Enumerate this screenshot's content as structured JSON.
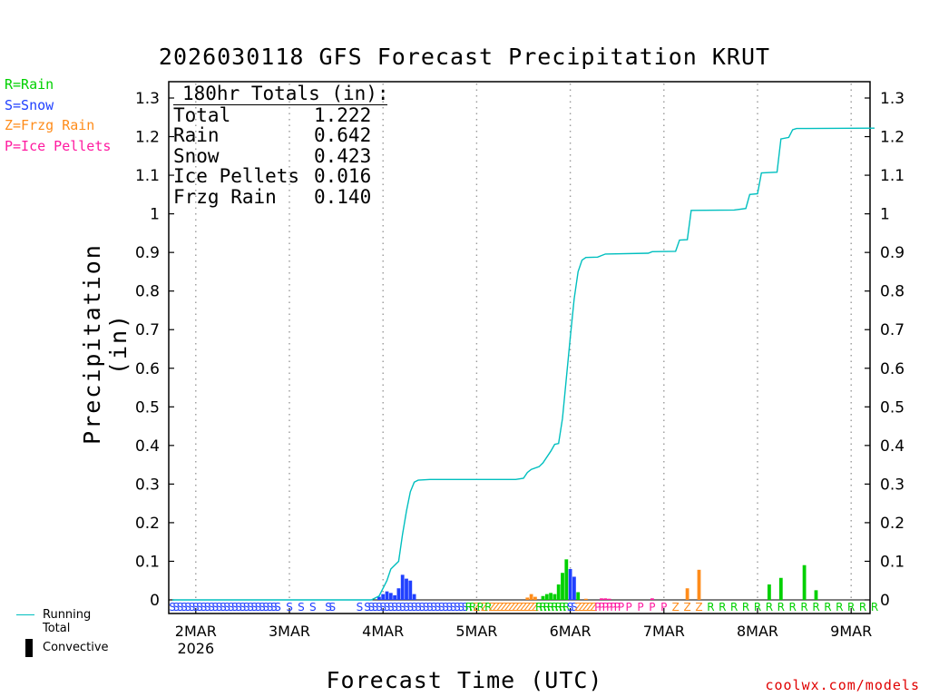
{
  "title": "2026030118 GFS Forecast Precipitation KRUT",
  "legend_types": [
    {
      "label": "R=Rain",
      "color": "#00d000"
    },
    {
      "label": "S=Snow",
      "color": "#2040ff"
    },
    {
      "label": "Z=Frzg Rain",
      "color": "#ff8c1a"
    },
    {
      "label": "P=Ice Pellets",
      "color": "#ff1aa0"
    }
  ],
  "totals": {
    "heading": "180hr Totals (in):",
    "rows": [
      {
        "label": "Total",
        "value": "1.222"
      },
      {
        "label": "Rain",
        "value": "0.642"
      },
      {
        "label": "Snow",
        "value": "0.423"
      },
      {
        "label": "Ice Pellets",
        "value": "0.016"
      },
      {
        "label": "Frzg Rain",
        "value": "0.140"
      }
    ]
  },
  "legend_bottom": {
    "running_total": "Running Total",
    "convective": "Convective"
  },
  "site": "coolwx.com/models",
  "colors": {
    "rain": "#00d000",
    "snow": "#2040ff",
    "frzg": "#ff8c1a",
    "ice": "#ff1aa0",
    "total": "#00bfbf"
  },
  "chart_data": {
    "type": "bar+line",
    "title": "2026030118 GFS Forecast Precipitation KRUT",
    "xlabel": "Forecast Time (UTC)",
    "ylabel": "Precipitation (in)",
    "ylim": [
      0,
      1.3
    ],
    "xlim_hours": [
      0,
      180
    ],
    "yticks": [
      0,
      0.1,
      0.2,
      0.3,
      0.4,
      0.5,
      0.6,
      0.7,
      0.8,
      0.9,
      1,
      1.1,
      1.2,
      1.3
    ],
    "ytick_labels": [
      "0",
      "0.1",
      "0.2",
      "0.3",
      "0.4",
      "0.5",
      "0.6",
      "0.7",
      "0.8",
      "0.9",
      "1",
      "1.1",
      "1.2",
      "1.3"
    ],
    "xticks": [
      {
        "hour": 6,
        "label": "2MAR",
        "sublabel": "2026"
      },
      {
        "hour": 30,
        "label": "3MAR"
      },
      {
        "hour": 54,
        "label": "4MAR"
      },
      {
        "hour": 78,
        "label": "5MAR"
      },
      {
        "hour": 102,
        "label": "6MAR"
      },
      {
        "hour": 126,
        "label": "7MAR"
      },
      {
        "hour": 150,
        "label": "8MAR"
      },
      {
        "hour": 174,
        "label": "9MAR"
      }
    ],
    "bars": [
      {
        "hour": 53,
        "value": 0.008,
        "type": "snow"
      },
      {
        "hour": 54,
        "value": 0.015,
        "type": "snow"
      },
      {
        "hour": 55,
        "value": 0.022,
        "type": "snow"
      },
      {
        "hour": 56,
        "value": 0.018,
        "type": "snow"
      },
      {
        "hour": 57,
        "value": 0.012,
        "type": "snow"
      },
      {
        "hour": 58,
        "value": 0.03,
        "type": "snow"
      },
      {
        "hour": 59,
        "value": 0.065,
        "type": "snow"
      },
      {
        "hour": 60,
        "value": 0.055,
        "type": "snow"
      },
      {
        "hour": 61,
        "value": 0.05,
        "type": "snow"
      },
      {
        "hour": 62,
        "value": 0.015,
        "type": "snow"
      },
      {
        "hour": 91,
        "value": 0.006,
        "type": "frzg"
      },
      {
        "hour": 92,
        "value": 0.015,
        "type": "frzg"
      },
      {
        "hour": 93,
        "value": 0.008,
        "type": "frzg"
      },
      {
        "hour": 95,
        "value": 0.01,
        "type": "rain"
      },
      {
        "hour": 96,
        "value": 0.015,
        "type": "rain"
      },
      {
        "hour": 97,
        "value": 0.018,
        "type": "rain"
      },
      {
        "hour": 98,
        "value": 0.015,
        "type": "rain"
      },
      {
        "hour": 99,
        "value": 0.04,
        "type": "rain"
      },
      {
        "hour": 100,
        "value": 0.07,
        "type": "rain"
      },
      {
        "hour": 101,
        "value": 0.105,
        "type": "rain"
      },
      {
        "hour": 102,
        "value": 0.08,
        "type": "snow"
      },
      {
        "hour": 103,
        "value": 0.06,
        "type": "snow"
      },
      {
        "hour": 104,
        "value": 0.02,
        "type": "rain"
      },
      {
        "hour": 106,
        "value": 0.003,
        "type": "frzg"
      },
      {
        "hour": 110,
        "value": 0.004,
        "type": "ice"
      },
      {
        "hour": 111,
        "value": 0.004,
        "type": "ice"
      },
      {
        "hour": 112,
        "value": 0.003,
        "type": "ice"
      },
      {
        "hour": 123,
        "value": 0.004,
        "type": "ice"
      },
      {
        "hour": 132,
        "value": 0.03,
        "type": "frzg"
      },
      {
        "hour": 135,
        "value": 0.078,
        "type": "frzg"
      },
      {
        "hour": 153,
        "value": 0.04,
        "type": "rain"
      },
      {
        "hour": 156,
        "value": 0.057,
        "type": "rain"
      },
      {
        "hour": 162,
        "value": 0.09,
        "type": "rain"
      },
      {
        "hour": 165,
        "value": 0.025,
        "type": "rain"
      }
    ],
    "running_total": [
      [
        0,
        0
      ],
      [
        51,
        0
      ],
      [
        53,
        0.01
      ],
      [
        55,
        0.05
      ],
      [
        56,
        0.08
      ],
      [
        58,
        0.1
      ],
      [
        59,
        0.17
      ],
      [
        60,
        0.23
      ],
      [
        61,
        0.28
      ],
      [
        62,
        0.305
      ],
      [
        63,
        0.31
      ],
      [
        66,
        0.312
      ],
      [
        88,
        0.312
      ],
      [
        90,
        0.315
      ],
      [
        91,
        0.33
      ],
      [
        92,
        0.338
      ],
      [
        94,
        0.345
      ],
      [
        95,
        0.355
      ],
      [
        97,
        0.385
      ],
      [
        98,
        0.403
      ],
      [
        99,
        0.405
      ],
      [
        100,
        0.47
      ],
      [
        101,
        0.575
      ],
      [
        102,
        0.68
      ],
      [
        103,
        0.78
      ],
      [
        104,
        0.85
      ],
      [
        105,
        0.88
      ],
      [
        106,
        0.887
      ],
      [
        109,
        0.888
      ],
      [
        111,
        0.896
      ],
      [
        122,
        0.898
      ],
      [
        123,
        0.902
      ],
      [
        129,
        0.903
      ],
      [
        130,
        0.932
      ],
      [
        132,
        0.933
      ],
      [
        133,
        1.009
      ],
      [
        144,
        1.01
      ],
      [
        147,
        1.014
      ],
      [
        148,
        1.05
      ],
      [
        150,
        1.052
      ],
      [
        151,
        1.106
      ],
      [
        155,
        1.108
      ],
      [
        156,
        1.194
      ],
      [
        158,
        1.198
      ],
      [
        159,
        1.218
      ],
      [
        160,
        1.221
      ],
      [
        180,
        1.222
      ]
    ],
    "type_codes": [
      {
        "hour": 0,
        "code": "S"
      },
      {
        "hour": 1,
        "code": "S"
      },
      {
        "hour": 2,
        "code": "S"
      },
      {
        "hour": 3,
        "code": "S"
      },
      {
        "hour": 4,
        "code": "S"
      },
      {
        "hour": 5,
        "code": "S"
      },
      {
        "hour": 6,
        "code": "S"
      },
      {
        "hour": 7,
        "code": "S"
      },
      {
        "hour": 8,
        "code": "S"
      },
      {
        "hour": 9,
        "code": "S"
      },
      {
        "hour": 10,
        "code": "S"
      },
      {
        "hour": 11,
        "code": "S"
      },
      {
        "hour": 12,
        "code": "S"
      },
      {
        "hour": 13,
        "code": "S"
      },
      {
        "hour": 14,
        "code": "S"
      },
      {
        "hour": 15,
        "code": "S"
      },
      {
        "hour": 16,
        "code": "S"
      },
      {
        "hour": 17,
        "code": "S"
      },
      {
        "hour": 18,
        "code": "S"
      },
      {
        "hour": 19,
        "code": "S"
      },
      {
        "hour": 20,
        "code": "S"
      },
      {
        "hour": 21,
        "code": "S"
      },
      {
        "hour": 22,
        "code": "S"
      },
      {
        "hour": 23,
        "code": "S"
      },
      {
        "hour": 24,
        "code": "S"
      },
      {
        "hour": 25,
        "code": "S"
      },
      {
        "hour": 26,
        "code": "S"
      },
      {
        "hour": 27,
        "code": "S"
      },
      {
        "hour": 30,
        "code": "S"
      },
      {
        "hour": 33,
        "code": "S"
      },
      {
        "hour": 36,
        "code": "S"
      },
      {
        "hour": 40,
        "code": "S"
      },
      {
        "hour": 41,
        "code": "S"
      },
      {
        "hour": 48,
        "code": "S"
      },
      {
        "hour": 50,
        "code": "S"
      },
      {
        "hour": 51,
        "code": "S"
      },
      {
        "hour": 52,
        "code": "S"
      },
      {
        "hour": 53,
        "code": "S"
      },
      {
        "hour": 54,
        "code": "S"
      },
      {
        "hour": 55,
        "code": "S"
      },
      {
        "hour": 56,
        "code": "S"
      },
      {
        "hour": 57,
        "code": "S"
      },
      {
        "hour": 58,
        "code": "S"
      },
      {
        "hour": 59,
        "code": "S"
      },
      {
        "hour": 60,
        "code": "S"
      },
      {
        "hour": 61,
        "code": "S"
      },
      {
        "hour": 62,
        "code": "S"
      },
      {
        "hour": 63,
        "code": "S"
      },
      {
        "hour": 64,
        "code": "S"
      },
      {
        "hour": 65,
        "code": "S"
      },
      {
        "hour": 66,
        "code": "S"
      },
      {
        "hour": 67,
        "code": "S"
      },
      {
        "hour": 68,
        "code": "S"
      },
      {
        "hour": 69,
        "code": "S"
      },
      {
        "hour": 70,
        "code": "S"
      },
      {
        "hour": 71,
        "code": "S"
      },
      {
        "hour": 72,
        "code": "S"
      },
      {
        "hour": 73,
        "code": "S"
      },
      {
        "hour": 74,
        "code": "S"
      },
      {
        "hour": 75,
        "code": "S"
      },
      {
        "hour": 76,
        "code": "R"
      },
      {
        "hour": 77,
        "code": "R"
      },
      {
        "hour": 78,
        "code": "Z"
      },
      {
        "hour": 79,
        "code": "R"
      },
      {
        "hour": 80,
        "code": "Z"
      },
      {
        "hour": 81,
        "code": "R"
      },
      {
        "hour": 82,
        "code": "Z"
      },
      {
        "hour": 83,
        "code": "Z"
      },
      {
        "hour": 84,
        "code": "Z"
      },
      {
        "hour": 85,
        "code": "Z"
      },
      {
        "hour": 86,
        "code": "Z"
      },
      {
        "hour": 87,
        "code": "Z"
      },
      {
        "hour": 88,
        "code": "Z"
      },
      {
        "hour": 89,
        "code": "Z"
      },
      {
        "hour": 90,
        "code": "Z"
      },
      {
        "hour": 91,
        "code": "Z"
      },
      {
        "hour": 92,
        "code": "Z"
      },
      {
        "hour": 93,
        "code": "Z"
      },
      {
        "hour": 94,
        "code": "R"
      },
      {
        "hour": 95,
        "code": "R"
      },
      {
        "hour": 96,
        "code": "R"
      },
      {
        "hour": 97,
        "code": "R"
      },
      {
        "hour": 98,
        "code": "R"
      },
      {
        "hour": 99,
        "code": "R"
      },
      {
        "hour": 100,
        "code": "R"
      },
      {
        "hour": 101,
        "code": "R"
      },
      {
        "hour": 102,
        "code": "S"
      },
      {
        "hour": 103,
        "code": "S"
      },
      {
        "hour": 104,
        "code": "Z"
      },
      {
        "hour": 105,
        "code": "Z"
      },
      {
        "hour": 106,
        "code": "Z"
      },
      {
        "hour": 107,
        "code": "Z"
      },
      {
        "hour": 108,
        "code": "Z"
      },
      {
        "hour": 109,
        "code": "P"
      },
      {
        "hour": 110,
        "code": "P"
      },
      {
        "hour": 111,
        "code": "P"
      },
      {
        "hour": 112,
        "code": "P"
      },
      {
        "hour": 113,
        "code": "P"
      },
      {
        "hour": 114,
        "code": "P"
      },
      {
        "hour": 115,
        "code": "P"
      },
      {
        "hour": 117,
        "code": "P"
      },
      {
        "hour": 120,
        "code": "P"
      },
      {
        "hour": 123,
        "code": "P"
      },
      {
        "hour": 126,
        "code": "P"
      },
      {
        "hour": 129,
        "code": "Z"
      },
      {
        "hour": 132,
        "code": "Z"
      },
      {
        "hour": 135,
        "code": "Z"
      },
      {
        "hour": 138,
        "code": "R"
      },
      {
        "hour": 141,
        "code": "R"
      },
      {
        "hour": 144,
        "code": "R"
      },
      {
        "hour": 147,
        "code": "R"
      },
      {
        "hour": 150,
        "code": "R"
      },
      {
        "hour": 153,
        "code": "R"
      },
      {
        "hour": 156,
        "code": "R"
      },
      {
        "hour": 159,
        "code": "R"
      },
      {
        "hour": 162,
        "code": "R"
      },
      {
        "hour": 165,
        "code": "R"
      },
      {
        "hour": 168,
        "code": "R"
      },
      {
        "hour": 171,
        "code": "R"
      },
      {
        "hour": 174,
        "code": "R"
      },
      {
        "hour": 177,
        "code": "R"
      },
      {
        "hour": 180,
        "code": "R"
      }
    ]
  }
}
